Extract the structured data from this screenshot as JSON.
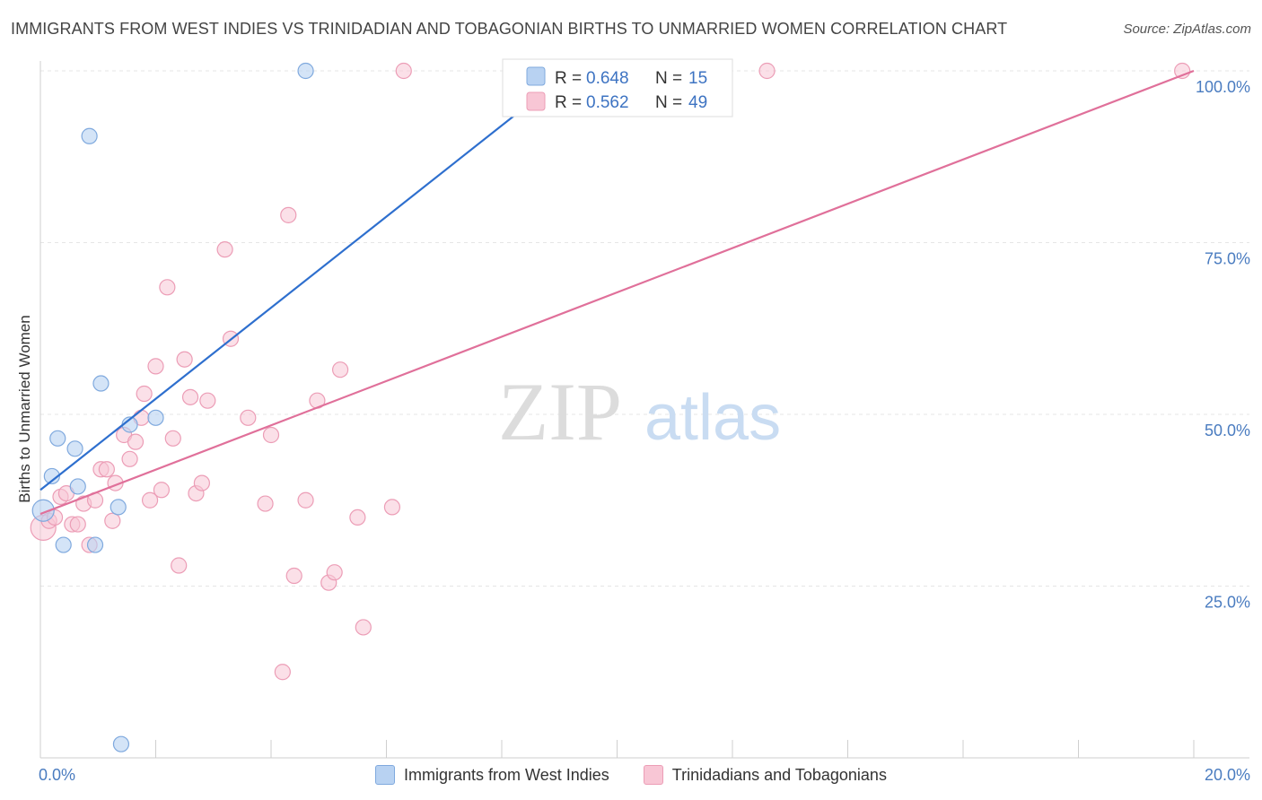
{
  "title": "IMMIGRANTS FROM WEST INDIES VS TRINIDADIAN AND TOBAGONIAN BIRTHS TO UNMARRIED WOMEN CORRELATION CHART",
  "source": "Source: ZipAtlas.com",
  "watermark": {
    "zip": "ZIP",
    "atlas": "atlas"
  },
  "colors": {
    "blue_fill": "#b8d2f2",
    "blue_stroke": "#7fa9de",
    "blue_line": "#2e6fce",
    "pink_fill": "#f8c6d5",
    "pink_stroke": "#ec9db6",
    "pink_line": "#e0709a",
    "tick_text": "#4a7cc0",
    "grid": "#e4e4e4"
  },
  "legend": {
    "rows": [
      {
        "r_label": "R =",
        "r_value": "0.648",
        "n_label": "N =",
        "n_value": "15",
        "color": "#b8d2f2"
      },
      {
        "r_label": "R =",
        "r_value": "0.562",
        "n_label": "N =",
        "n_value": "49",
        "color": "#f8c6d5"
      }
    ]
  },
  "chart_data": {
    "type": "scatter",
    "title": "IMMIGRANTS FROM WEST INDIES VS TRINIDADIAN AND TOBAGONIAN BIRTHS TO UNMARRIED WOMEN CORRELATION CHART",
    "xlabel": "",
    "ylabel": "Births to Unmarried Women",
    "xlim": [
      0,
      20
    ],
    "ylim": [
      0,
      102
    ],
    "x_tick_labels": [
      "0.0%",
      "20.0%"
    ],
    "y_ticks": [
      25,
      50,
      75,
      100
    ],
    "y_tick_labels": [
      "25.0%",
      "50.0%",
      "75.0%",
      "100.0%"
    ],
    "grid": true,
    "legend_position": "top-center",
    "series": [
      {
        "name": "Immigrants from West Indies",
        "color": "#b8d2f2",
        "points": [
          [
            0.05,
            36.0
          ],
          [
            0.2,
            41.0
          ],
          [
            0.3,
            46.5
          ],
          [
            0.4,
            31.0
          ],
          [
            0.6,
            45.0
          ],
          [
            0.65,
            39.5
          ],
          [
            0.85,
            90.5
          ],
          [
            0.95,
            31.0
          ],
          [
            1.05,
            54.5
          ],
          [
            1.35,
            36.5
          ],
          [
            1.4,
            2.0
          ],
          [
            1.55,
            48.5
          ],
          [
            2.0,
            49.5
          ],
          [
            4.6,
            100.0
          ],
          [
            11.35,
            100.0
          ]
        ],
        "trend": [
          [
            0.0,
            39.0
          ],
          [
            9.2,
            100.0
          ]
        ]
      },
      {
        "name": "Trinidadians and Tobagonians",
        "color": "#f8c6d5",
        "points": [
          [
            0.05,
            33.5
          ],
          [
            0.15,
            34.5
          ],
          [
            0.25,
            35.0
          ],
          [
            0.35,
            38.0
          ],
          [
            0.45,
            38.5
          ],
          [
            0.55,
            34.0
          ],
          [
            0.65,
            34.0
          ],
          [
            0.75,
            37.0
          ],
          [
            0.85,
            31.0
          ],
          [
            0.95,
            37.5
          ],
          [
            1.05,
            42.0
          ],
          [
            1.15,
            42.0
          ],
          [
            1.25,
            34.5
          ],
          [
            1.3,
            40.0
          ],
          [
            1.45,
            47.0
          ],
          [
            1.55,
            43.5
          ],
          [
            1.65,
            46.0
          ],
          [
            1.75,
            49.5
          ],
          [
            1.8,
            53.0
          ],
          [
            1.9,
            37.5
          ],
          [
            2.0,
            57.0
          ],
          [
            2.1,
            39.0
          ],
          [
            2.2,
            68.5
          ],
          [
            2.3,
            46.5
          ],
          [
            2.4,
            28.0
          ],
          [
            2.5,
            58.0
          ],
          [
            2.6,
            52.5
          ],
          [
            2.7,
            38.5
          ],
          [
            2.8,
            40.0
          ],
          [
            2.9,
            52.0
          ],
          [
            3.2,
            74.0
          ],
          [
            3.3,
            61.0
          ],
          [
            3.6,
            49.5
          ],
          [
            3.9,
            37.0
          ],
          [
            4.0,
            47.0
          ],
          [
            4.2,
            12.5
          ],
          [
            4.3,
            79.0
          ],
          [
            4.4,
            26.5
          ],
          [
            4.6,
            37.5
          ],
          [
            4.8,
            52.0
          ],
          [
            5.0,
            25.5
          ],
          [
            5.1,
            27.0
          ],
          [
            5.2,
            56.5
          ],
          [
            5.5,
            35.0
          ],
          [
            5.6,
            19.0
          ],
          [
            6.1,
            36.5
          ],
          [
            6.3,
            100.0
          ],
          [
            12.6,
            100.0
          ],
          [
            19.8,
            100.0
          ]
        ],
        "trend": [
          [
            0.0,
            35.5
          ],
          [
            20.0,
            100.0
          ]
        ]
      }
    ]
  },
  "bottom_legend": {
    "items": [
      {
        "label": "Immigrants from West Indies",
        "color": "#b8d2f2"
      },
      {
        "label": "Trinidadians and Tobagonians",
        "color": "#f8c6d5"
      }
    ]
  }
}
